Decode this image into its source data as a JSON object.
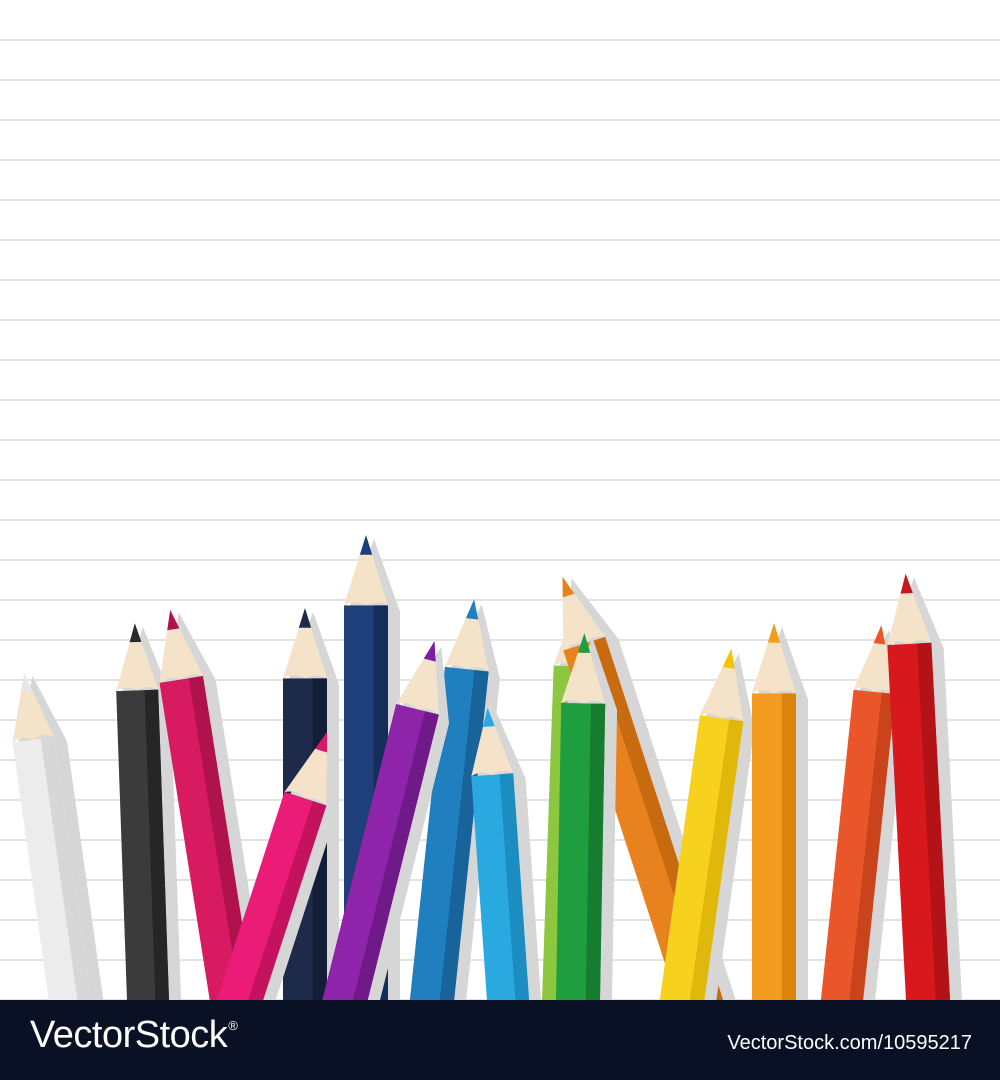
{
  "footer": {
    "brand_name": "VectorStock",
    "brand_mark": "®",
    "image_credit": "VectorStock.com/10595217"
  },
  "colors": {
    "paper": "#ffffff",
    "rule_line": "#d9d9d9",
    "shadow": "#d6d6d6",
    "wood": "#f5e3c9",
    "footer_bg": "#0b1125"
  },
  "pencils": [
    {
      "name": "white",
      "body": "#ececec",
      "dark": "#d7d7d7",
      "tip": "#e6e6e6"
    },
    {
      "name": "black",
      "body": "#3b3b3b",
      "dark": "#262626",
      "tip": "#2a2a2a"
    },
    {
      "name": "magenta",
      "body": "#d81b60",
      "dark": "#b0124c",
      "tip": "#b0124c"
    },
    {
      "name": "navy",
      "body": "#1e2a4a",
      "dark": "#141d36",
      "tip": "#1e2a4a"
    },
    {
      "name": "blue",
      "body": "#1f3f7a",
      "dark": "#152d5a",
      "tip": "#1f3f7a"
    },
    {
      "name": "pink",
      "body": "#ea1c78",
      "dark": "#c5125f",
      "tip": "#d8166b"
    },
    {
      "name": "purple",
      "body": "#8e24aa",
      "dark": "#6f1a88",
      "tip": "#7b1fa2"
    },
    {
      "name": "teal-blue",
      "body": "#1f7fbf",
      "dark": "#17639a",
      "tip": "#1f7fbf"
    },
    {
      "name": "sky-blue",
      "body": "#29a9e0",
      "dark": "#1b8dc0",
      "tip": "#29a9e0"
    },
    {
      "name": "lime-green",
      "body": "#8dc63f",
      "dark": "#6fa62b",
      "tip": "#7cb342"
    },
    {
      "name": "green",
      "body": "#1e9e3e",
      "dark": "#167d30",
      "tip": "#1e9e3e"
    },
    {
      "name": "orange-dark",
      "body": "#e8821e",
      "dark": "#c86a10",
      "tip": "#e8821e"
    },
    {
      "name": "yellow",
      "body": "#f6d21e",
      "dark": "#e0b80c",
      "tip": "#f2c500"
    },
    {
      "name": "orange",
      "body": "#f39c1f",
      "dark": "#d8840e",
      "tip": "#f39c1f"
    },
    {
      "name": "red-orange",
      "body": "#e8562a",
      "dark": "#c9431b",
      "tip": "#e8562a"
    },
    {
      "name": "red",
      "body": "#d7191e",
      "dark": "#b31216",
      "tip": "#c8161c"
    }
  ]
}
